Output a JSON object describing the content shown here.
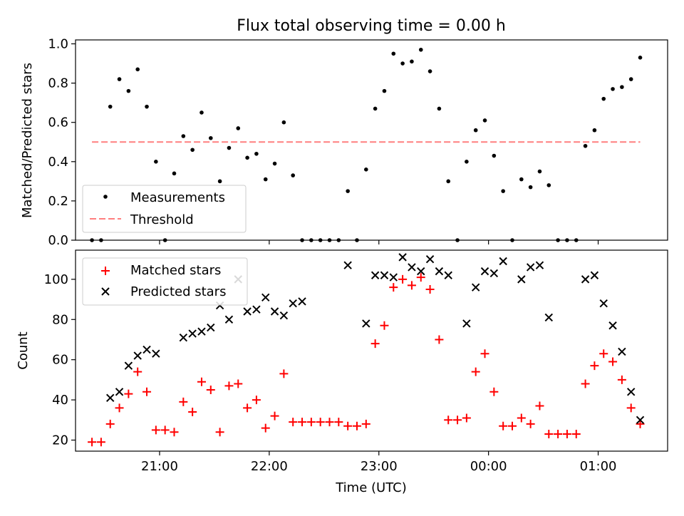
{
  "title": "Flux total observing time = 0.00 h",
  "colors": {
    "measurement": "#000000",
    "threshold": "#ff7f7f",
    "matched": "#ff0000",
    "predicted": "#000000"
  },
  "chart_data": [
    {
      "type": "scatter",
      "title": "Flux total observing time = 0.00 h",
      "ylabel": "Matched/Predicted stars",
      "ylim": [
        0,
        1.02
      ],
      "yticks": [
        "0.0",
        "0.2",
        "0.4",
        "0.6",
        "0.8",
        "1.0"
      ],
      "yticks_values": [
        0,
        0.2,
        0.4,
        0.6,
        0.8,
        1.0
      ],
      "legend": {
        "position": "lower-left",
        "entries": [
          "Measurements",
          "Threshold"
        ]
      },
      "series": [
        {
          "name": "Measurements",
          "marker": "dot",
          "points": [
            [
              "20:23",
              0.0
            ],
            [
              "20:28",
              0.0
            ],
            [
              "20:33",
              0.68
            ],
            [
              "20:38",
              0.82
            ],
            [
              "20:43",
              0.76
            ],
            [
              "20:48",
              0.87
            ],
            [
              "20:53",
              0.68
            ],
            [
              "20:58",
              0.4
            ],
            [
              "21:03",
              0.0
            ],
            [
              "21:08",
              0.34
            ],
            [
              "21:13",
              0.53
            ],
            [
              "21:18",
              0.46
            ],
            [
              "21:23",
              0.65
            ],
            [
              "21:28",
              0.52
            ],
            [
              "21:33",
              0.3
            ],
            [
              "21:38",
              0.47
            ],
            [
              "21:43",
              0.57
            ],
            [
              "21:48",
              0.42
            ],
            [
              "21:53",
              0.44
            ],
            [
              "21:58",
              0.31
            ],
            [
              "22:03",
              0.39
            ],
            [
              "22:08",
              0.6
            ],
            [
              "22:13",
              0.33
            ],
            [
              "22:18",
              0.0
            ],
            [
              "22:23",
              0.0
            ],
            [
              "22:28",
              0.0
            ],
            [
              "22:33",
              0.0
            ],
            [
              "22:38",
              0.0
            ],
            [
              "22:43",
              0.25
            ],
            [
              "22:48",
              0.0
            ],
            [
              "22:53",
              0.36
            ],
            [
              "22:58",
              0.67
            ],
            [
              "23:03",
              0.76
            ],
            [
              "23:08",
              0.95
            ],
            [
              "23:13",
              0.9
            ],
            [
              "23:18",
              0.91
            ],
            [
              "23:23",
              0.97
            ],
            [
              "23:28",
              0.86
            ],
            [
              "23:33",
              0.67
            ],
            [
              "23:38",
              0.3
            ],
            [
              "23:43",
              0.0
            ],
            [
              "23:48",
              0.4
            ],
            [
              "23:53",
              0.56
            ],
            [
              "23:58",
              0.61
            ],
            [
              "00:03",
              0.43
            ],
            [
              "00:08",
              0.25
            ],
            [
              "00:13",
              0.0
            ],
            [
              "00:18",
              0.31
            ],
            [
              "00:23",
              0.27
            ],
            [
              "00:28",
              0.35
            ],
            [
              "00:33",
              0.28
            ],
            [
              "00:38",
              0.0
            ],
            [
              "00:43",
              0.0
            ],
            [
              "00:48",
              0.0
            ],
            [
              "00:53",
              0.48
            ],
            [
              "00:58",
              0.56
            ],
            [
              "01:03",
              0.72
            ],
            [
              "01:08",
              0.77
            ],
            [
              "01:13",
              0.78
            ],
            [
              "01:18",
              0.82
            ],
            [
              "01:23",
              0.93
            ]
          ]
        },
        {
          "name": "Threshold",
          "style": "dashed",
          "points": [
            [
              "20:23",
              0.5
            ],
            [
              "01:23",
              0.5
            ]
          ]
        }
      ]
    },
    {
      "type": "scatter",
      "ylabel": "Count",
      "xlabel": "Time (UTC)",
      "ylim": [
        14.5,
        114.5
      ],
      "yticks": [
        "20",
        "40",
        "60",
        "80",
        "100"
      ],
      "yticks_values": [
        20,
        40,
        60,
        80,
        100
      ],
      "xlim": [
        "20:14",
        "01:38"
      ],
      "xticks": [
        "21:00",
        "22:00",
        "23:00",
        "00:00",
        "01:00"
      ],
      "legend": {
        "position": "upper-left",
        "entries": [
          "Matched stars",
          "Predicted stars"
        ]
      },
      "series": [
        {
          "name": "Matched stars",
          "marker": "plus",
          "points": [
            [
              "20:23",
              19
            ],
            [
              "20:28",
              19
            ],
            [
              "20:33",
              28
            ],
            [
              "20:38",
              36
            ],
            [
              "20:43",
              43
            ],
            [
              "20:48",
              54
            ],
            [
              "20:53",
              44
            ],
            [
              "20:58",
              25
            ],
            [
              "21:03",
              25
            ],
            [
              "21:08",
              24
            ],
            [
              "21:13",
              39
            ],
            [
              "21:18",
              34
            ],
            [
              "21:23",
              49
            ],
            [
              "21:28",
              45
            ],
            [
              "21:33",
              24
            ],
            [
              "21:38",
              47
            ],
            [
              "21:43",
              48
            ],
            [
              "21:48",
              36
            ],
            [
              "21:53",
              40
            ],
            [
              "21:58",
              26
            ],
            [
              "22:03",
              32
            ],
            [
              "22:08",
              53
            ],
            [
              "22:13",
              29
            ],
            [
              "22:18",
              29
            ],
            [
              "22:23",
              29
            ],
            [
              "22:28",
              29
            ],
            [
              "22:33",
              29
            ],
            [
              "22:38",
              29
            ],
            [
              "22:43",
              27
            ],
            [
              "22:48",
              27
            ],
            [
              "22:53",
              28
            ],
            [
              "22:58",
              68
            ],
            [
              "23:03",
              77
            ],
            [
              "23:08",
              96
            ],
            [
              "23:13",
              100
            ],
            [
              "23:18",
              97
            ],
            [
              "23:23",
              101
            ],
            [
              "23:28",
              95
            ],
            [
              "23:33",
              70
            ],
            [
              "23:38",
              30
            ],
            [
              "23:43",
              30
            ],
            [
              "23:48",
              31
            ],
            [
              "23:53",
              54
            ],
            [
              "23:58",
              63
            ],
            [
              "00:03",
              44
            ],
            [
              "00:08",
              27
            ],
            [
              "00:13",
              27
            ],
            [
              "00:18",
              31
            ],
            [
              "00:23",
              28
            ],
            [
              "00:28",
              37
            ],
            [
              "00:33",
              23
            ],
            [
              "00:38",
              23
            ],
            [
              "00:43",
              23
            ],
            [
              "00:48",
              23
            ],
            [
              "00:53",
              48
            ],
            [
              "00:58",
              57
            ],
            [
              "01:03",
              63
            ],
            [
              "01:08",
              59
            ],
            [
              "01:13",
              50
            ],
            [
              "01:18",
              36
            ],
            [
              "01:23",
              28
            ]
          ]
        },
        {
          "name": "Predicted stars",
          "marker": "x",
          "points": [
            [
              "20:33",
              41
            ],
            [
              "20:38",
              44
            ],
            [
              "20:43",
              57
            ],
            [
              "20:48",
              62
            ],
            [
              "20:53",
              65
            ],
            [
              "20:58",
              63
            ],
            [
              "21:13",
              71
            ],
            [
              "21:18",
              73
            ],
            [
              "21:23",
              74
            ],
            [
              "21:28",
              76
            ],
            [
              "21:33",
              87
            ],
            [
              "21:38",
              80
            ],
            [
              "21:43",
              100
            ],
            [
              "21:48",
              84
            ],
            [
              "21:53",
              85
            ],
            [
              "21:58",
              91
            ],
            [
              "22:03",
              84
            ],
            [
              "22:08",
              82
            ],
            [
              "22:13",
              88
            ],
            [
              "22:18",
              89
            ],
            [
              "22:43",
              107
            ],
            [
              "22:53",
              78
            ],
            [
              "22:58",
              102
            ],
            [
              "23:03",
              102
            ],
            [
              "23:08",
              101
            ],
            [
              "23:13",
              111
            ],
            [
              "23:18",
              106
            ],
            [
              "23:23",
              104
            ],
            [
              "23:28",
              110
            ],
            [
              "23:33",
              104
            ],
            [
              "23:38",
              102
            ],
            [
              "23:48",
              78
            ],
            [
              "23:53",
              96
            ],
            [
              "23:58",
              104
            ],
            [
              "00:03",
              103
            ],
            [
              "00:08",
              109
            ],
            [
              "00:18",
              100
            ],
            [
              "00:23",
              106
            ],
            [
              "00:28",
              107
            ],
            [
              "00:33",
              81
            ],
            [
              "00:53",
              100
            ],
            [
              "00:58",
              102
            ],
            [
              "01:03",
              88
            ],
            [
              "01:08",
              77
            ],
            [
              "01:13",
              64
            ],
            [
              "01:18",
              44
            ],
            [
              "01:23",
              30
            ]
          ]
        }
      ]
    }
  ]
}
